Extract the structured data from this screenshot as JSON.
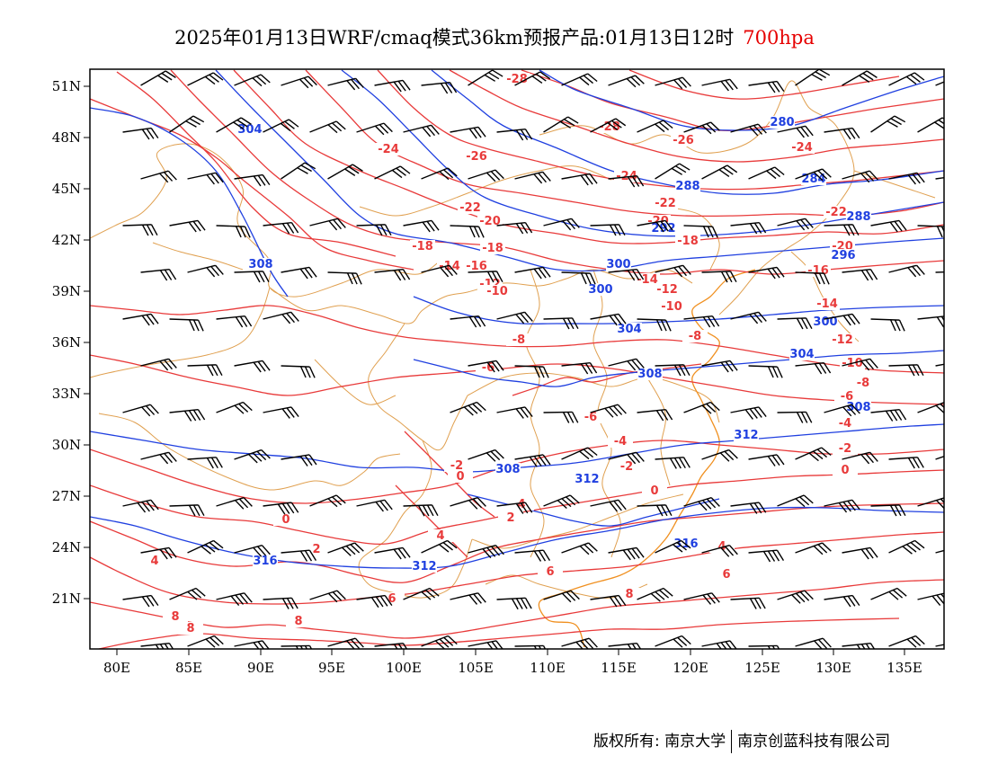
{
  "title": {
    "main": "2025年01月13日WRF/cmaq模式36km预报产品:01月13日12时",
    "level": "700hpa"
  },
  "colors": {
    "temperature": "#e83a3a",
    "height": "#2040e0",
    "boundary": "#e0a050",
    "coast": "#f09020",
    "wind_barb": "#000000",
    "level_text": "#e60000"
  },
  "axes": {
    "x_ticks": [
      "80E",
      "85E",
      "90E",
      "95E",
      "100E",
      "105E",
      "110E",
      "115E",
      "120E",
      "125E",
      "130E",
      "135E"
    ],
    "y_ticks": [
      "51N",
      "48N",
      "45N",
      "42N",
      "39N",
      "36N",
      "33N",
      "30N",
      "27N",
      "24N",
      "21N"
    ],
    "x_range": [
      78,
      138
    ],
    "y_range": [
      18,
      52
    ]
  },
  "temperature_labels": [
    "-28",
    "-28",
    "-26",
    "-26",
    "-24",
    "-24",
    "-24",
    "-22",
    "-22",
    "-22",
    "-20",
    "-20",
    "-20",
    "-18",
    "-18",
    "-18",
    "-16",
    "-16",
    "-14",
    "-14",
    "-14",
    "-12",
    "-12",
    "-12",
    "-10",
    "-10",
    "-10",
    "-8",
    "-8",
    "-8",
    "-6",
    "-6",
    "-6",
    "-4",
    "-4",
    "-2",
    "-2",
    "-2",
    "0",
    "0",
    "0",
    "0",
    "2",
    "2",
    "4",
    "4",
    "4",
    "4",
    "6",
    "6",
    "6",
    "8",
    "8",
    "8",
    "8"
  ],
  "height_labels": [
    "304",
    "308",
    "280",
    "284",
    "288",
    "288",
    "292",
    "296",
    "300",
    "300",
    "300",
    "304",
    "304",
    "308",
    "308",
    "308",
    "312",
    "312",
    "312",
    "316",
    "316"
  ],
  "copyright": {
    "owner": "版权所有: 南京大学",
    "company": "南京创蓝科技有限公司"
  }
}
